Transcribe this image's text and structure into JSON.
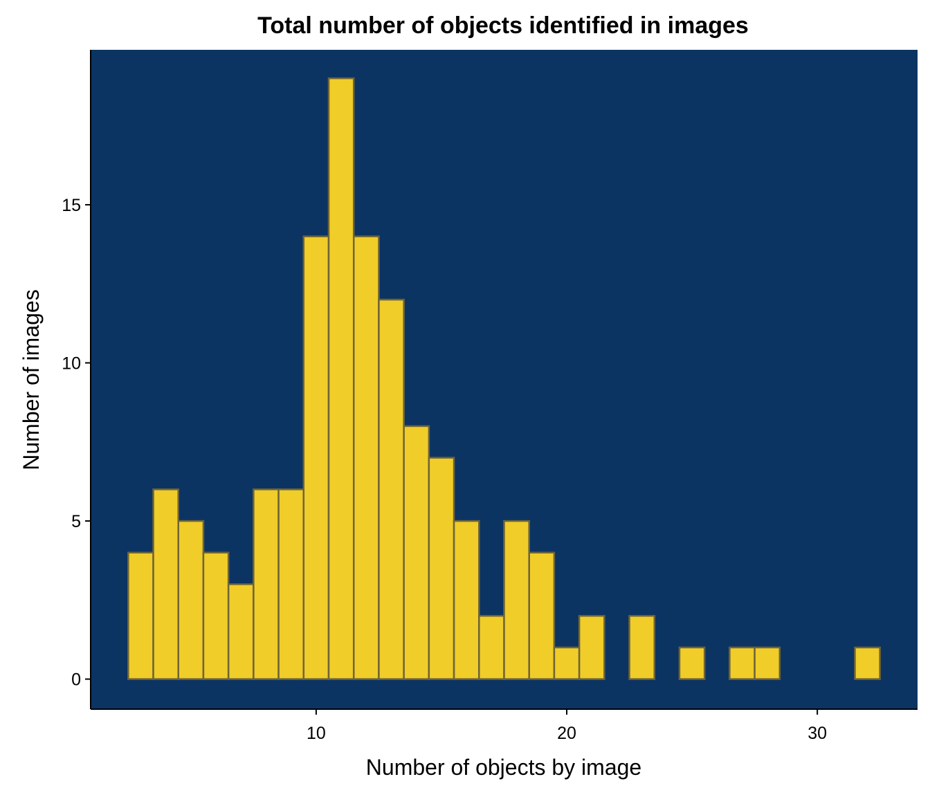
{
  "chart_data": {
    "type": "bar",
    "title": "Total number of objects identified in images",
    "xlabel": "Number of objects by image",
    "ylabel": "Number of images",
    "bin_width": 1,
    "x": [
      3,
      4,
      5,
      6,
      7,
      8,
      9,
      10,
      11,
      12,
      13,
      14,
      15,
      16,
      17,
      18,
      19,
      20,
      21,
      23,
      25,
      27,
      28,
      32
    ],
    "values": [
      4,
      6,
      5,
      4,
      3,
      6,
      6,
      14,
      19,
      14,
      12,
      8,
      7,
      5,
      2,
      5,
      4,
      1,
      2,
      2,
      1,
      1,
      1,
      1
    ],
    "xlim": [
      1,
      34
    ],
    "ylim": [
      -0.95,
      19.9
    ],
    "xticks": [
      "10",
      "20",
      "30"
    ],
    "yticks": [
      "0",
      "5",
      "10",
      "15"
    ],
    "grid": false,
    "legend": "none",
    "colors": {
      "panel_background": "#0b3463",
      "bar_fill": "#f0cd28",
      "bar_outline": "#6f6437",
      "axis_line": "#000000"
    }
  }
}
